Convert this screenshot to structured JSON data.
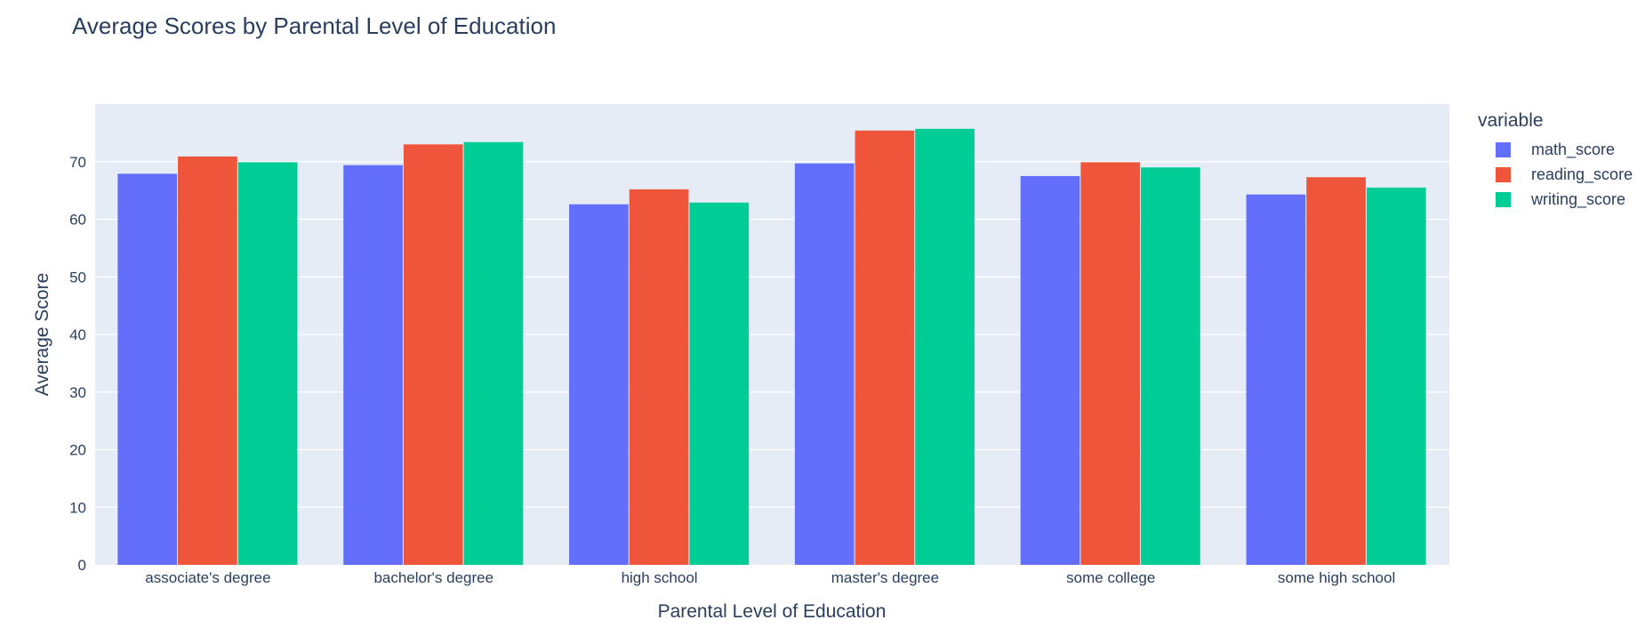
{
  "chart_data": {
    "type": "bar",
    "title": "Average Scores by Parental Level of Education",
    "xlabel": "Parental Level of Education",
    "ylabel": "Average Score",
    "legend_title": "variable",
    "legend_position": "top-right",
    "grid": true,
    "ylim": [
      0,
      80
    ],
    "yticks": [
      0,
      10,
      20,
      30,
      40,
      50,
      60,
      70
    ],
    "categories": [
      "associate's degree",
      "bachelor's degree",
      "high school",
      "master's degree",
      "some college",
      "some high school"
    ],
    "series": [
      {
        "name": "math_score",
        "color": "#636efa",
        "values": [
          67.9,
          69.4,
          62.6,
          69.7,
          67.5,
          64.3
        ]
      },
      {
        "name": "reading_score",
        "color": "#ef553b",
        "values": [
          70.9,
          73.0,
          65.2,
          75.4,
          69.9,
          67.3
        ]
      },
      {
        "name": "writing_score",
        "color": "#00cc96",
        "values": [
          69.9,
          73.4,
          62.9,
          75.7,
          69.0,
          65.5
        ]
      }
    ]
  }
}
